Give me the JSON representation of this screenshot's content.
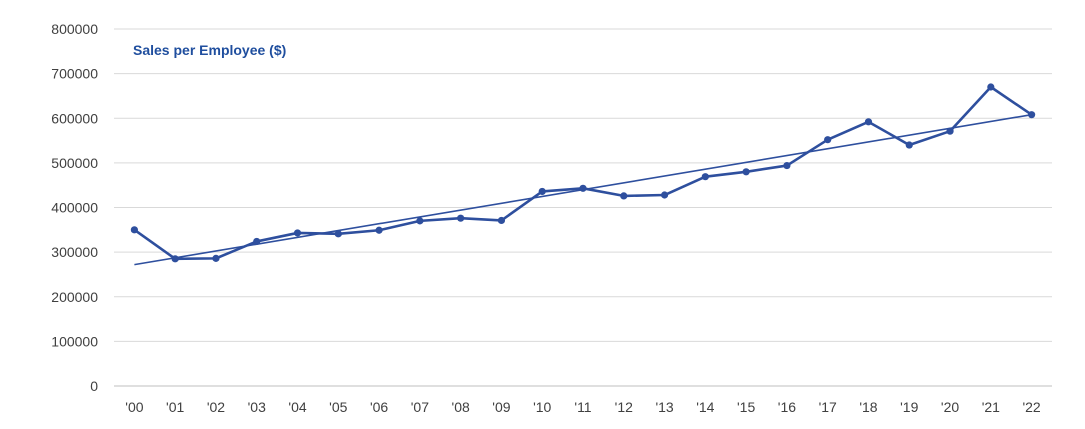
{
  "chart_data": {
    "type": "line",
    "title": "Sales per Employee ($)",
    "categories": [
      "'00",
      "'01",
      "'02",
      "'03",
      "'04",
      "'05",
      "'06",
      "'07",
      "'08",
      "'09",
      "'10",
      "'11",
      "'12",
      "'13",
      "'14",
      "'15",
      "'16",
      "'17",
      "'18",
      "'19",
      "'20",
      "'21",
      "'22"
    ],
    "series": [
      {
        "values": [
          350000,
          285000,
          286000,
          324000,
          343000,
          341000,
          349000,
          370000,
          376000,
          371000,
          436000,
          443000,
          426000,
          428000,
          469000,
          480000,
          494000,
          552000,
          592000,
          540000,
          571000,
          670000,
          608000
        ],
        "color": "#2e4f9e"
      }
    ],
    "trendline": {
      "from": 272000,
      "to": 608000,
      "color": "#2e4f9e"
    },
    "ylim": [
      0,
      800000
    ],
    "yticks": [
      0,
      100000,
      200000,
      300000,
      400000,
      500000,
      600000,
      700000,
      800000
    ],
    "ytick_labels": [
      "0",
      "100000",
      "200000",
      "300000",
      "400000",
      "500000",
      "600000",
      "700000",
      "800000"
    ],
    "xlabel": "",
    "ylabel": "",
    "grid": true,
    "legend": "none",
    "colors": {
      "series": "#2e4f9e",
      "title": "#1f4e9e",
      "grid": "#d9d9d9",
      "tick_text": "#404040"
    }
  }
}
